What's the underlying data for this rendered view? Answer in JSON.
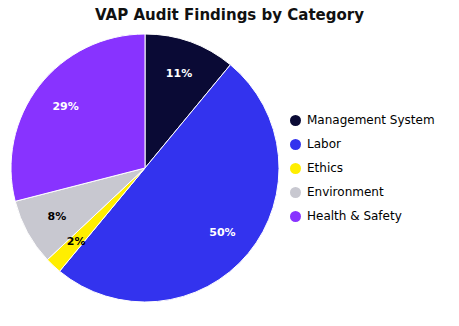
{
  "chart_data": {
    "type": "pie",
    "title": "VAP Audit Findings by Category",
    "categories": [
      "Management System",
      "Labor",
      "Ethics",
      "Environment",
      "Health & Safety"
    ],
    "values": [
      11,
      50,
      2,
      8,
      29
    ],
    "value_labels": [
      "11%",
      "50%",
      "2%",
      "8%",
      "29%"
    ],
    "colors": [
      "#0A0A35",
      "#3333EE",
      "#FFEE00",
      "#C8C8D0",
      "#8833FF"
    ],
    "data_labels": true,
    "legend": "right"
  }
}
